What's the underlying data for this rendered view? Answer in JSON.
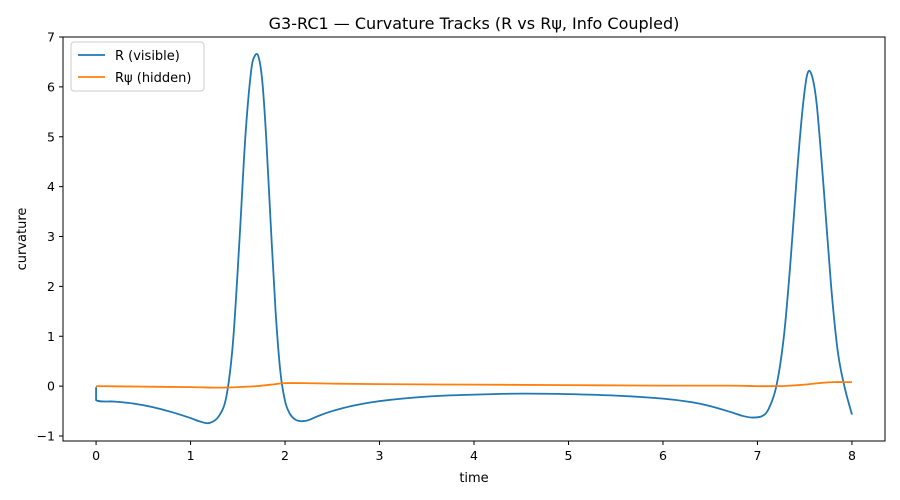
{
  "chart_data": {
    "type": "line",
    "title": "G3-RC1 — Curvature Tracks (R vs Rψ, Info Coupled)",
    "xlabel": "time",
    "ylabel": "curvature",
    "xlim": [
      -0.35,
      8.35
    ],
    "ylim": [
      -1.1,
      7.0
    ],
    "xticks": [
      0,
      1,
      2,
      3,
      4,
      5,
      6,
      7,
      8
    ],
    "yticks": [
      -1,
      0,
      1,
      2,
      3,
      4,
      5,
      6,
      7
    ],
    "xtick_labels": [
      "0",
      "1",
      "2",
      "3",
      "4",
      "5",
      "6",
      "7",
      "8"
    ],
    "ytick_labels": [
      "−1",
      "0",
      "1",
      "2",
      "3",
      "4",
      "5",
      "6",
      "7"
    ],
    "grid": false,
    "legend_position": "top-left",
    "series": [
      {
        "name": "R (visible)",
        "color": "#1f77b4",
        "x": [
          0,
          0,
          0.2,
          0.4,
          0.6,
          0.8,
          1.0,
          1.1,
          1.2,
          1.3,
          1.38,
          1.45,
          1.52,
          1.58,
          1.64,
          1.68,
          1.72,
          1.76,
          1.8,
          1.85,
          1.9,
          1.95,
          2.0,
          2.05,
          2.1,
          2.15,
          2.2,
          2.25,
          2.35,
          2.5,
          2.7,
          3.0,
          3.5,
          4.0,
          4.5,
          5.0,
          5.5,
          6.0,
          6.3,
          6.5,
          6.7,
          6.85,
          6.95,
          7.05,
          7.12,
          7.2,
          7.28,
          7.35,
          7.42,
          7.48,
          7.53,
          7.58,
          7.63,
          7.7,
          7.78,
          7.85,
          7.92,
          8.0
        ],
        "y": [
          -0.02,
          -0.28,
          -0.31,
          -0.35,
          -0.42,
          -0.52,
          -0.64,
          -0.71,
          -0.74,
          -0.6,
          -0.2,
          0.9,
          3.0,
          5.0,
          6.3,
          6.62,
          6.6,
          6.1,
          5.0,
          3.2,
          1.5,
          0.3,
          -0.3,
          -0.55,
          -0.66,
          -0.7,
          -0.7,
          -0.68,
          -0.6,
          -0.5,
          -0.4,
          -0.3,
          -0.21,
          -0.17,
          -0.15,
          -0.16,
          -0.19,
          -0.25,
          -0.32,
          -0.4,
          -0.51,
          -0.6,
          -0.63,
          -0.6,
          -0.45,
          0.0,
          1.0,
          2.5,
          4.3,
          5.6,
          6.27,
          6.2,
          5.6,
          4.0,
          2.0,
          0.7,
          0.0,
          -0.57
        ]
      },
      {
        "name": "Rψ (hidden)",
        "color": "#ff7f0e",
        "x": [
          0,
          0.5,
          1.0,
          1.3,
          1.5,
          1.7,
          1.9,
          2.0,
          2.2,
          2.5,
          3.0,
          4.0,
          5.0,
          6.0,
          6.7,
          7.0,
          7.2,
          7.35,
          7.5,
          7.65,
          7.8,
          8.0
        ],
        "y": [
          -0.0,
          -0.01,
          -0.02,
          -0.03,
          -0.02,
          0.0,
          0.04,
          0.06,
          0.06,
          0.05,
          0.04,
          0.03,
          0.02,
          0.01,
          0.01,
          0.0,
          0.0,
          0.01,
          0.03,
          0.06,
          0.08,
          0.08
        ]
      }
    ]
  }
}
